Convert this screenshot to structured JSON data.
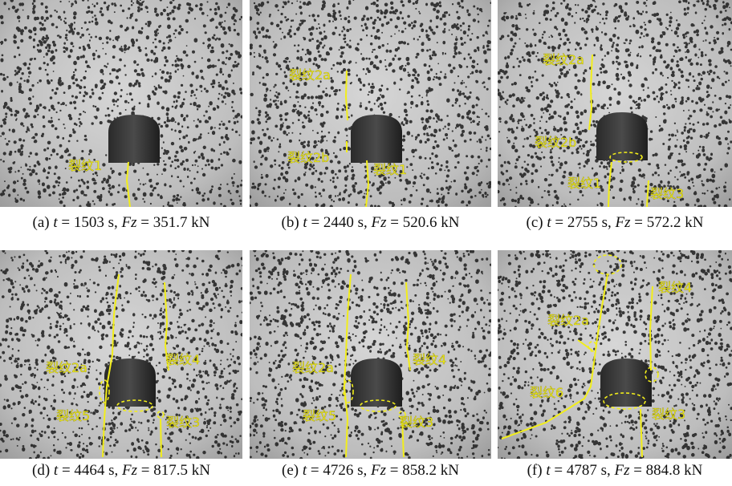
{
  "panels": [
    {
      "labels": [
        "裂纹1"
      ],
      "caption": [
        "(a) ",
        "t",
        " = 1503 s, ",
        "Fz",
        " = 351.7 kN"
      ]
    },
    {
      "labels": [
        "裂纹2a",
        "裂纹2b",
        "裂纹1"
      ],
      "caption": [
        "(b) ",
        "t",
        " = 2440 s, ",
        "Fz",
        " = 520.6 kN"
      ]
    },
    {
      "labels": [
        "裂纹2a",
        "裂纹2b",
        "裂纹1",
        "裂纹3"
      ],
      "caption": [
        "(c) ",
        "t",
        " = 2755 s, ",
        "Fz",
        " = 572.2 kN"
      ]
    },
    {
      "labels": [
        "裂纹2a",
        "裂纹4",
        "裂纹5",
        "裂纹3"
      ],
      "caption": [
        "(d) ",
        "t",
        " = 4464 s, ",
        "Fz",
        " = 817.5 kN"
      ]
    },
    {
      "labels": [
        "裂纹2a",
        "裂纹4",
        "裂纹5",
        "裂纹3"
      ],
      "caption": [
        "(e) ",
        "t",
        " = 4726 s, ",
        "Fz",
        " = 858.2 kN"
      ]
    },
    {
      "labels": [
        "裂纹4",
        "裂纹2a",
        "裂纹6",
        "裂纹3"
      ],
      "caption": [
        "(f) ",
        "t",
        " = 4787 s, ",
        "Fz",
        " = 884.8 kN"
      ]
    }
  ]
}
